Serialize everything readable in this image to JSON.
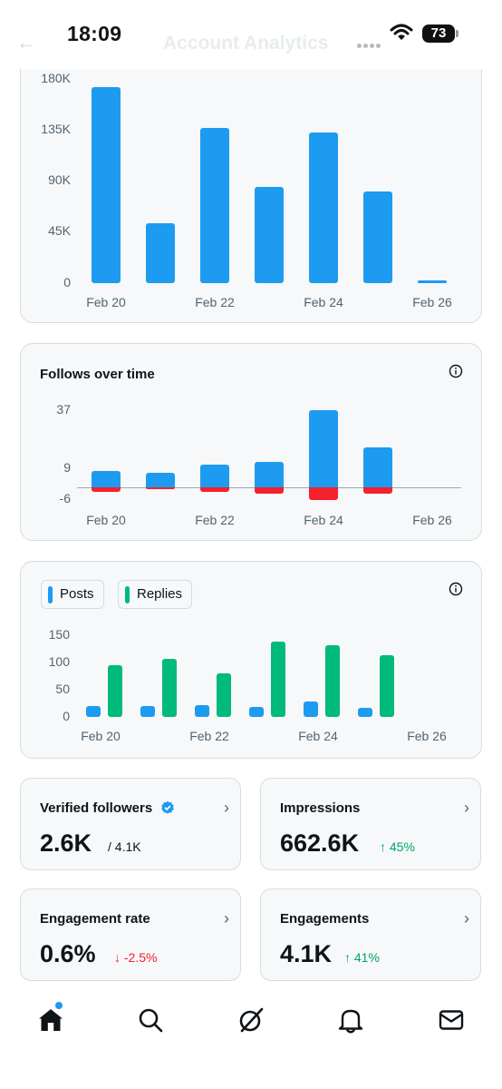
{
  "status_bar": {
    "time": "18:09",
    "battery": "73"
  },
  "nav": {
    "back_icon": "arrow-left-icon",
    "title": "Account Analytics"
  },
  "colors": {
    "posts_blue": "#1d9bf0",
    "replies_green": "#00ba7c",
    "unfollow_red": "#f4212e",
    "positive": "#00ba7c",
    "negative": "#f4212e"
  },
  "impressions_chart": {
    "chart_data": {
      "type": "bar",
      "categories": [
        "Feb 20",
        "Feb 21",
        "Feb 22",
        "Feb 23",
        "Feb 24",
        "Feb 25",
        "Feb 26"
      ],
      "x_tick_labels": [
        "Feb 20",
        "Feb 22",
        "Feb 24",
        "Feb 26"
      ],
      "y_tick_labels": [
        "180K",
        "135K",
        "90K",
        "45K",
        "0"
      ],
      "values": [
        173000,
        53000,
        137000,
        85000,
        133000,
        81000,
        2500
      ],
      "ylim": [
        0,
        180000
      ]
    }
  },
  "follows_chart": {
    "title": "Follows over time",
    "info_icon": "info-circle-icon",
    "chart_data": {
      "type": "bar",
      "categories": [
        "Feb 20",
        "Feb 21",
        "Feb 22",
        "Feb 23",
        "Feb 24",
        "Feb 25",
        "Feb 26"
      ],
      "x_tick_labels": [
        "Feb 20",
        "Feb 22",
        "Feb 24",
        "Feb 26"
      ],
      "y_tick_labels": [
        "37",
        "9",
        "-6"
      ],
      "series": [
        {
          "values": [
            8,
            7,
            11,
            12,
            37,
            19,
            0
          ]
        },
        {
          "values": [
            -2,
            -1,
            -2,
            -3,
            -6,
            -3,
            0
          ]
        }
      ],
      "ylim": [
        -6,
        37
      ]
    }
  },
  "posts_replies_chart": {
    "info_icon": "info-circle-icon",
    "legend": [
      {
        "label": "Posts",
        "color": "#1d9bf0"
      },
      {
        "label": "Replies",
        "color": "#00ba7c"
      }
    ],
    "chart_data": {
      "type": "bar",
      "categories": [
        "Feb 20",
        "Feb 21",
        "Feb 22",
        "Feb 23",
        "Feb 24",
        "Feb 25",
        "Feb 26"
      ],
      "x_tick_labels": [
        "Feb 20",
        "Feb 22",
        "Feb 24",
        "Feb 26"
      ],
      "y_tick_labels": [
        "150",
        "100",
        "50",
        "0"
      ],
      "series": [
        {
          "name": "Posts",
          "values": [
            20,
            20,
            22,
            19,
            29,
            16,
            0
          ]
        },
        {
          "name": "Replies",
          "values": [
            95,
            106,
            80,
            139,
            131,
            114,
            0
          ]
        }
      ],
      "ylim": [
        0,
        150
      ]
    }
  },
  "stats": {
    "verified_followers": {
      "label": "Verified followers",
      "value": "2.6K",
      "total": "/ 4.1K",
      "icon": "verified-badge-icon"
    },
    "impressions": {
      "label": "Impressions",
      "value": "662.6K",
      "change": "↑ 45%"
    },
    "engagement_rate": {
      "label": "Engagement rate",
      "value": "0.6%",
      "change": "↓ -2.5%"
    },
    "engagements": {
      "label": "Engagements",
      "value": "4.1K",
      "change": "↑ 41%"
    }
  },
  "tab_bar": {
    "items": [
      "home-icon",
      "search-icon",
      "grok-icon",
      "notifications-bell-icon",
      "messages-envelope-icon"
    ]
  }
}
